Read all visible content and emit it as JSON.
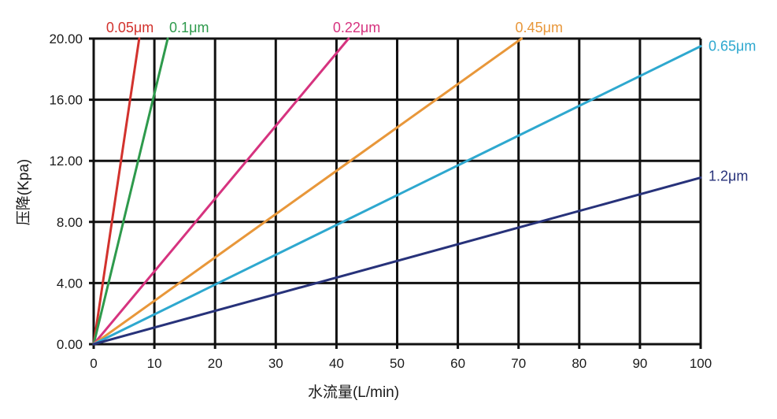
{
  "chart_data": {
    "type": "line",
    "title": "",
    "xlabel": "水流量(L/min)",
    "ylabel": "压降(Kpa)",
    "xlim": [
      0,
      100
    ],
    "ylim": [
      0,
      20
    ],
    "x_ticks": [
      "0",
      "10",
      "20",
      "30",
      "40",
      "50",
      "60",
      "70",
      "80",
      "90",
      "100"
    ],
    "y_ticks": [
      "0.00",
      "4.00",
      "8.00",
      "12.00",
      "16.00",
      "20.00"
    ],
    "grid": true,
    "legend": "inline labels at line ends",
    "series": [
      {
        "name": "0.05μm",
        "color": "#d2322d",
        "x": [
          0,
          7.5
        ],
        "y": [
          0,
          20
        ]
      },
      {
        "name": "0.1μm",
        "color": "#2e9a4c",
        "x": [
          0,
          12.2
        ],
        "y": [
          0,
          20
        ]
      },
      {
        "name": "0.22μm",
        "color": "#d6337f",
        "x": [
          0,
          42
        ],
        "y": [
          0,
          20
        ]
      },
      {
        "name": "0.45μm",
        "color": "#e8973a",
        "x": [
          0,
          70.5
        ],
        "y": [
          0,
          20
        ]
      },
      {
        "name": "0.65μm",
        "color": "#2ea8cf",
        "x": [
          0,
          100
        ],
        "y": [
          0,
          19.5
        ]
      },
      {
        "name": "1.2μm",
        "color": "#27327a",
        "x": [
          0,
          100
        ],
        "y": [
          0,
          10.9
        ]
      }
    ]
  }
}
